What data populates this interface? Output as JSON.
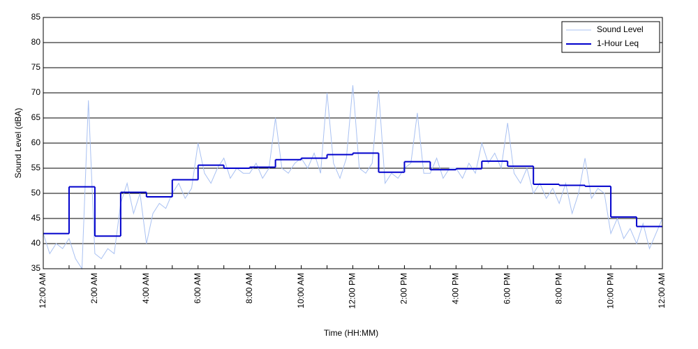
{
  "chart_data": {
    "type": "line",
    "xlabel": "Time (HH:MM)",
    "ylabel": "Sound Level (dBA)",
    "xlim": [
      0,
      24
    ],
    "ylim": [
      35,
      85
    ],
    "yticks": [
      35,
      40,
      45,
      50,
      55,
      60,
      65,
      70,
      75,
      80,
      85
    ],
    "xticks": [
      {
        "value": 0,
        "label": "12:00 AM"
      },
      {
        "value": 2,
        "label": "2:00 AM"
      },
      {
        "value": 4,
        "label": "4:00 AM"
      },
      {
        "value": 6,
        "label": "6:00 AM"
      },
      {
        "value": 8,
        "label": "8:00 AM"
      },
      {
        "value": 10,
        "label": "10:00 AM"
      },
      {
        "value": 12,
        "label": "12:00 PM"
      },
      {
        "value": 14,
        "label": "2:00 PM"
      },
      {
        "value": 16,
        "label": "4:00 PM"
      },
      {
        "value": 18,
        "label": "6:00 PM"
      },
      {
        "value": 20,
        "label": "8:00 PM"
      },
      {
        "value": 22,
        "label": "10:00 PM"
      },
      {
        "value": 24,
        "label": "12:00 AM"
      }
    ],
    "xminorticks": [
      1,
      3,
      5,
      7,
      9,
      11,
      13,
      15,
      17,
      19,
      21,
      23
    ],
    "grid": true,
    "legend": "upper right",
    "series": [
      {
        "name": "Sound Level",
        "color": "#a9c1f2",
        "style": "line",
        "x": [
          0,
          0.25,
          0.5,
          0.75,
          1,
          1.25,
          1.5,
          1.75,
          2,
          2.25,
          2.5,
          2.75,
          3,
          3.25,
          3.5,
          3.75,
          4,
          4.25,
          4.5,
          4.75,
          5,
          5.25,
          5.5,
          5.75,
          6,
          6.25,
          6.5,
          6.75,
          7,
          7.25,
          7.5,
          7.75,
          8,
          8.25,
          8.5,
          8.75,
          9,
          9.25,
          9.5,
          9.75,
          10,
          10.25,
          10.5,
          10.75,
          11,
          11.25,
          11.5,
          11.75,
          12,
          12.25,
          12.5,
          12.75,
          13,
          13.25,
          13.5,
          13.75,
          14,
          14.25,
          14.5,
          14.75,
          15,
          15.25,
          15.5,
          15.75,
          16,
          16.25,
          16.5,
          16.75,
          17,
          17.25,
          17.5,
          17.75,
          18,
          18.25,
          18.5,
          18.75,
          19,
          19.25,
          19.5,
          19.75,
          20,
          20.25,
          20.5,
          20.75,
          21,
          21.25,
          21.5,
          21.75,
          22,
          22.25,
          22.5,
          22.75,
          23,
          23.25,
          23.5,
          23.75,
          24
        ],
        "values": [
          42,
          38,
          40,
          39,
          41,
          37,
          35,
          68.5,
          38,
          37,
          39,
          38,
          48,
          52,
          46,
          50,
          40,
          46,
          48,
          47,
          50,
          52,
          49,
          51,
          60,
          54,
          52,
          55,
          57,
          53,
          55,
          54,
          54,
          56,
          53,
          55,
          65,
          55,
          54,
          56,
          57,
          55,
          58,
          54,
          70,
          56,
          53,
          57,
          71.5,
          55,
          54,
          56,
          70.5,
          52,
          54,
          53,
          55,
          56,
          66,
          54,
          54,
          57,
          53,
          55,
          55,
          53,
          56,
          54,
          60,
          56,
          58,
          55,
          64,
          54,
          52,
          55,
          50,
          52,
          49,
          51,
          48,
          52,
          46,
          50,
          57,
          49,
          51,
          50,
          42,
          45,
          41,
          43,
          40,
          44,
          39,
          42,
          45
        ]
      },
      {
        "name": "1-Hour Leq",
        "color": "#0000cc",
        "style": "step",
        "x": [
          0,
          1,
          2,
          3,
          4,
          5,
          6,
          7,
          8,
          9,
          10,
          11,
          12,
          13,
          14,
          15,
          16,
          17,
          18,
          19,
          20,
          21,
          22,
          23
        ],
        "values": [
          42,
          51.3,
          41.5,
          50.2,
          49.3,
          52.7,
          55.6,
          55,
          55.2,
          56.7,
          57,
          57.7,
          58,
          54.2,
          56.3,
          54.7,
          54.9,
          56.4,
          55.4,
          51.8,
          51.6,
          51.4,
          45.3,
          43.4
        ]
      }
    ]
  }
}
